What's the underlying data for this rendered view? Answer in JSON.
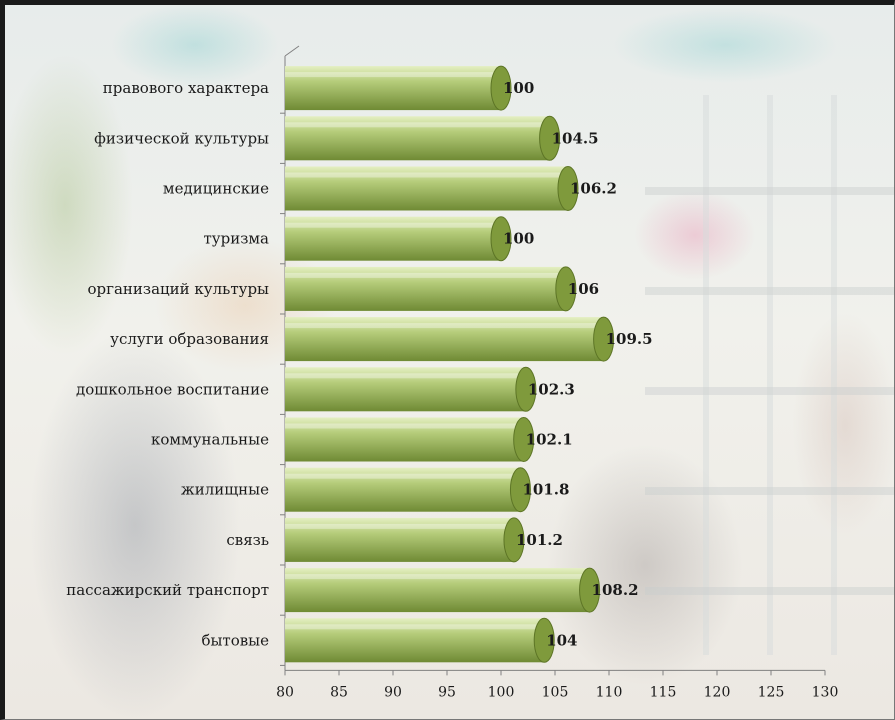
{
  "chart_data": {
    "type": "bar",
    "orientation": "horizontal",
    "categories": [
      "правового характера",
      "физической культуры",
      "медицинские",
      "туризма",
      "организаций культуры",
      "услуги образования",
      "дошкольное воспитание",
      "коммунальные",
      "жилищные",
      "связь",
      "пассажирский транспорт",
      "бытовые"
    ],
    "values": [
      100,
      104.5,
      106.2,
      100,
      106,
      109.5,
      102.3,
      102.1,
      101.8,
      101.2,
      108.2,
      104
    ],
    "value_labels": [
      "100",
      "104.5",
      "106.2",
      "100",
      "106",
      "109.5",
      "102.3",
      "102.1",
      "101.8",
      "101.2",
      "108.2",
      "104"
    ],
    "xlim": [
      80,
      130
    ],
    "x_ticks": [
      "80",
      "85",
      "90",
      "95",
      "100",
      "105",
      "110",
      "115",
      "120",
      "125",
      "130"
    ],
    "title": "",
    "xlabel": "",
    "ylabel": "",
    "grid": false,
    "legend": "none",
    "bar_style": "3d-cylinder",
    "colors": {
      "bar_light": "#e4efc2",
      "bar_mid": "#b5cc7a",
      "bar_dark": "#6f8a34",
      "cap": "#7f9a3c",
      "axis": "#808080"
    }
  }
}
